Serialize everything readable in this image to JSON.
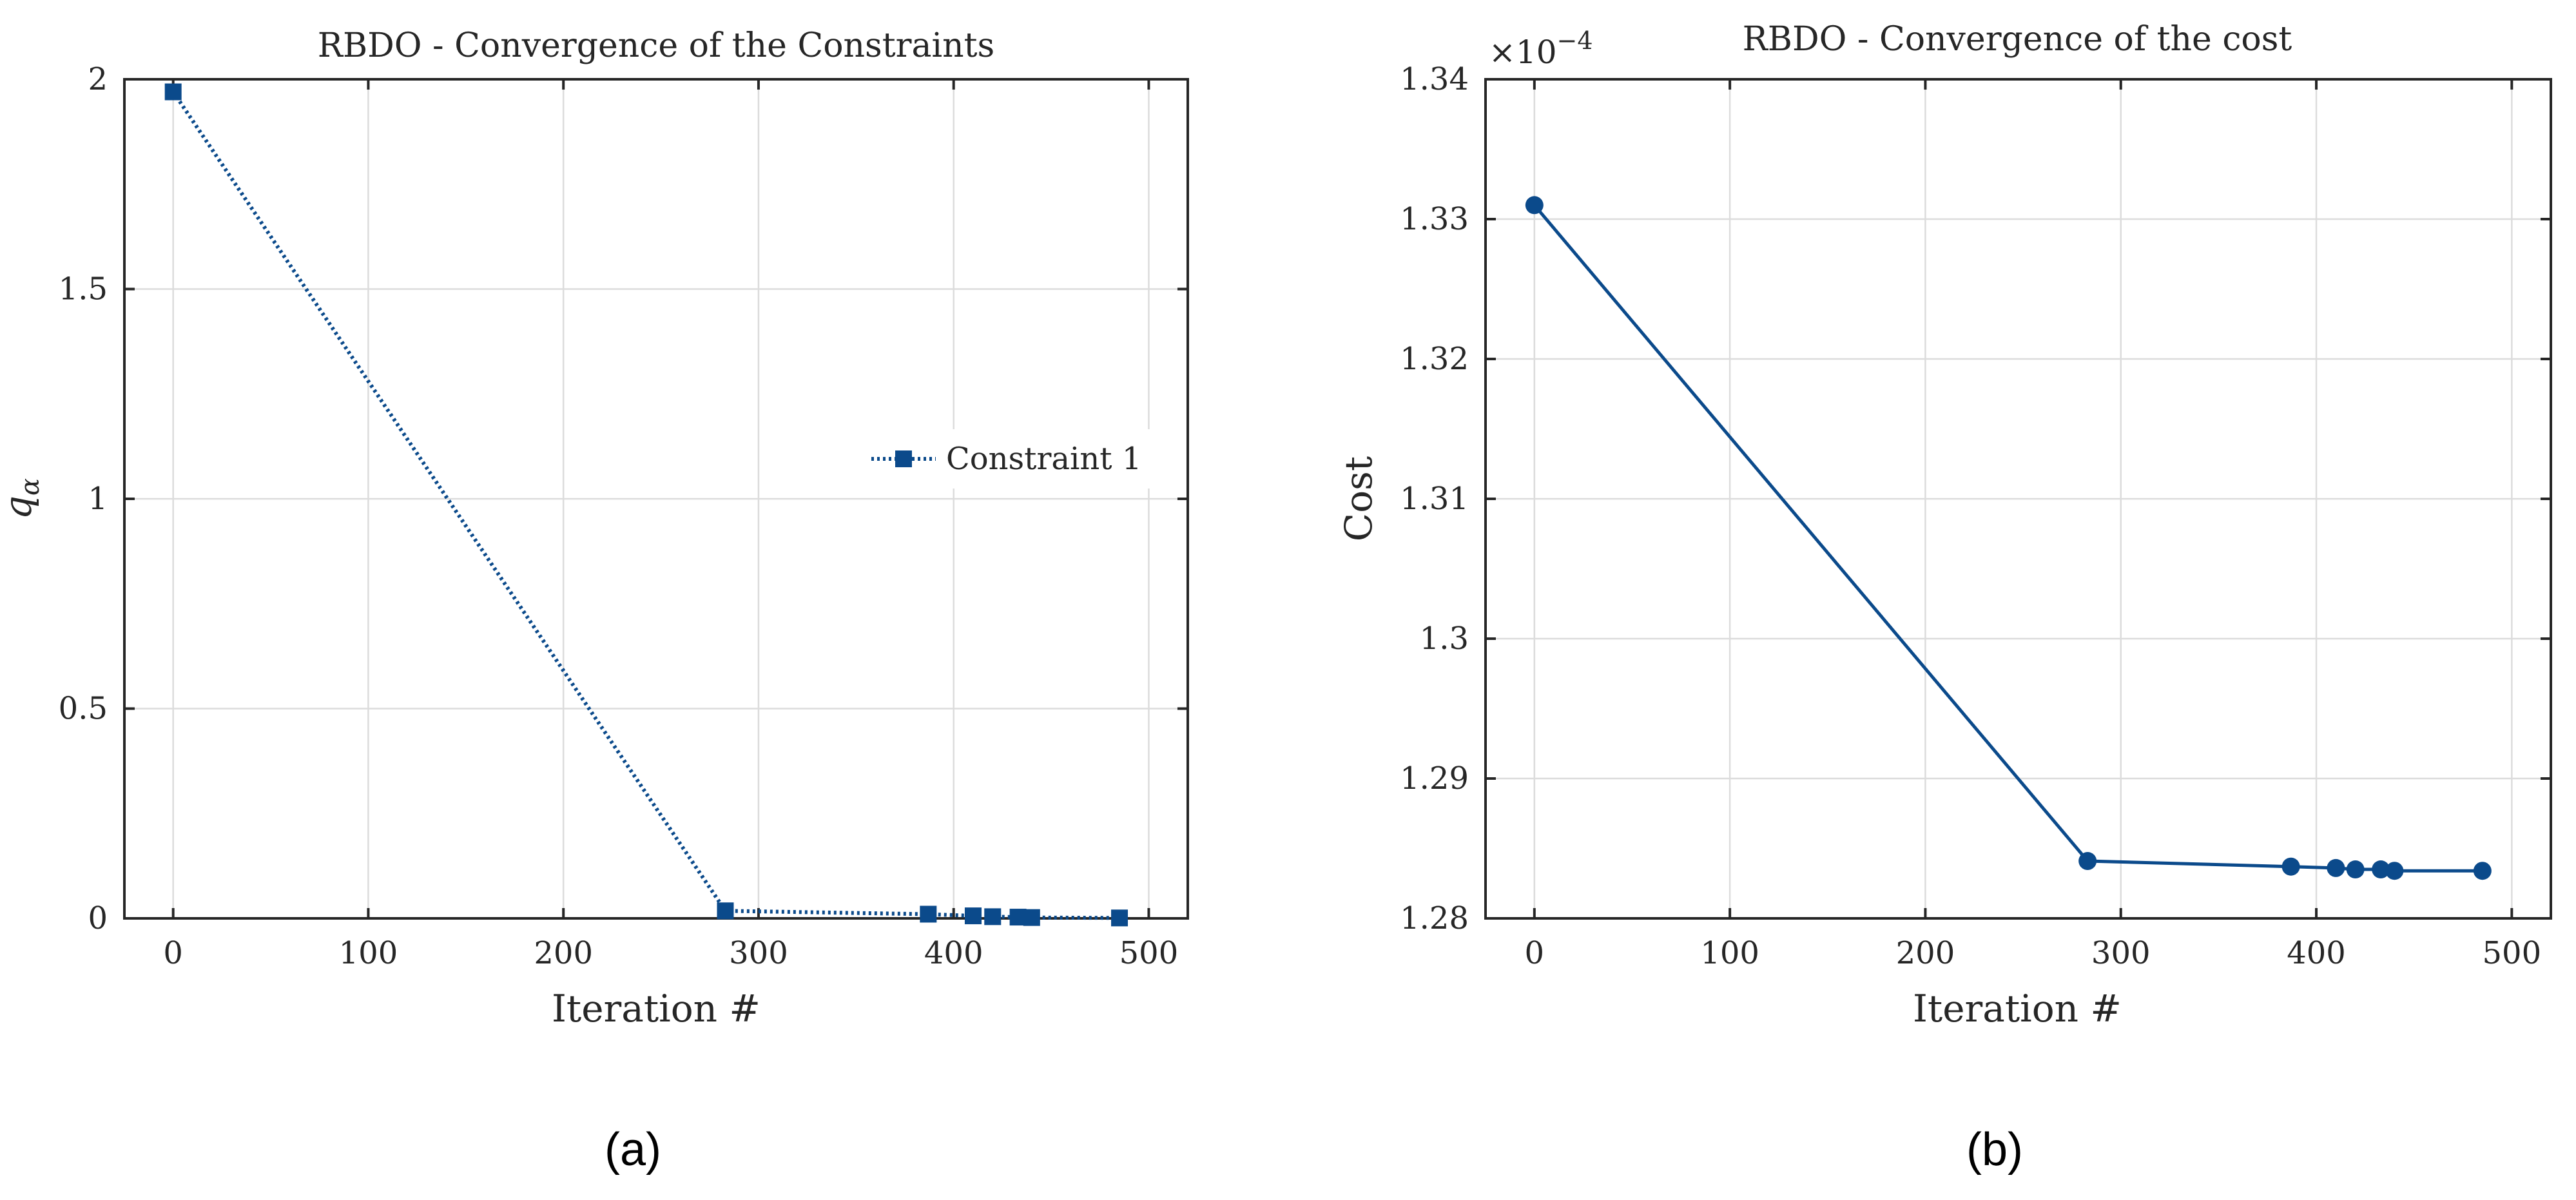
{
  "chart_data": [
    {
      "type": "line",
      "title": "RBDO - Convergence of the Constraints",
      "xlabel": "Iteration #",
      "ylabel": "q",
      "ylabel_sub": "α",
      "xlim": [
        -25,
        520
      ],
      "ylim": [
        0,
        2
      ],
      "xticks": [
        0,
        100,
        200,
        300,
        400,
        500
      ],
      "xtick_labels": [
        "0",
        "100",
        "200",
        "300",
        "400",
        "500"
      ],
      "yticks": [
        0,
        0.5,
        1,
        1.5,
        2
      ],
      "ytick_labels": [
        "0",
        "0.5",
        "1",
        "1.5",
        "2"
      ],
      "grid": true,
      "legend": "right",
      "series": [
        {
          "name": "Constraint 1",
          "line_style": "dotted",
          "marker": "square",
          "color": "#0b4a8b",
          "x": [
            0,
            283,
            387,
            410,
            420,
            433,
            440,
            485
          ],
          "y": [
            1.97,
            0.018,
            0.01,
            0.006,
            0.004,
            0.003,
            0.002,
            0.001
          ]
        }
      ],
      "caption": "(a)"
    },
    {
      "type": "line",
      "title": "RBDO - Convergence of the cost",
      "xlabel": "Iteration #",
      "ylabel": "Cost",
      "scale_label": "×10",
      "scale_exponent": "−4",
      "xlim": [
        -25,
        520
      ],
      "ylim": [
        1.28,
        1.34
      ],
      "xticks": [
        0,
        100,
        200,
        300,
        400,
        500
      ],
      "xtick_labels": [
        "0",
        "100",
        "200",
        "300",
        "400",
        "500"
      ],
      "yticks": [
        1.28,
        1.29,
        1.3,
        1.31,
        1.32,
        1.33,
        1.34
      ],
      "ytick_labels": [
        "1.28",
        "1.29",
        "1.3",
        "1.31",
        "1.32",
        "1.33",
        "1.34"
      ],
      "grid": true,
      "series": [
        {
          "line_style": "solid",
          "marker": "circle",
          "color": "#0b4a8b",
          "x": [
            0,
            283,
            387,
            410,
            420,
            433,
            440,
            485
          ],
          "y": [
            1.331,
            1.2841,
            1.2837,
            1.2836,
            1.2835,
            1.2835,
            1.2834,
            1.2834
          ]
        }
      ],
      "caption": "(b)"
    }
  ]
}
